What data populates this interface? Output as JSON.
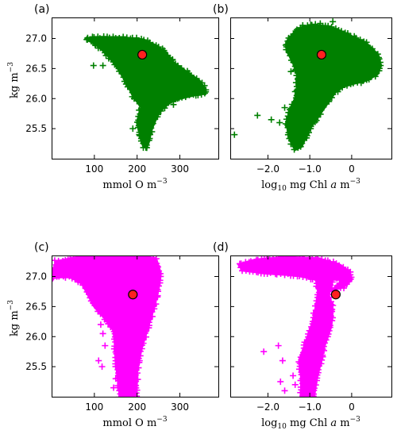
{
  "chart_data": [
    {
      "panel_label": "(a)",
      "type": "scatter",
      "xlabel_main": "mmol O m",
      "xlabel_sup": "−3",
      "ylabel_main": "kg m",
      "ylabel_sup": "−3",
      "xlim": [
        0,
        390
      ],
      "ylim": [
        25.0,
        27.35
      ],
      "xticks": [
        100,
        200,
        300
      ],
      "xtick_labels": [
        "100",
        "200",
        "300"
      ],
      "yticks": [
        25.5,
        26.0,
        26.5,
        27.0
      ],
      "ytick_labels": [
        "25.5",
        "26.0",
        "26.5",
        "27.0"
      ],
      "point_color": "#008000",
      "marker_point": {
        "x": 212,
        "y": 26.73
      },
      "cloud_outline": [
        [
          80,
          27.0
        ],
        [
          100,
          27.02
        ],
        [
          160,
          27.02
        ],
        [
          215,
          26.98
        ],
        [
          245,
          26.88
        ],
        [
          265,
          26.78
        ],
        [
          285,
          26.6
        ],
        [
          315,
          26.45
        ],
        [
          345,
          26.3
        ],
        [
          360,
          26.15
        ],
        [
          360,
          26.1
        ],
        [
          330,
          26.05
        ],
        [
          300,
          26.0
        ],
        [
          280,
          25.95
        ],
        [
          262,
          25.85
        ],
        [
          250,
          25.75
        ],
        [
          240,
          25.6
        ],
        [
          232,
          25.45
        ],
        [
          228,
          25.3
        ],
        [
          222,
          25.18
        ],
        [
          215,
          25.2
        ],
        [
          210,
          25.3
        ],
        [
          205,
          25.45
        ],
        [
          200,
          25.6
        ],
        [
          205,
          25.75
        ],
        [
          210,
          25.85
        ],
        [
          200,
          25.95
        ],
        [
          190,
          26.05
        ],
        [
          180,
          26.2
        ],
        [
          168,
          26.35
        ],
        [
          155,
          26.5
        ],
        [
          140,
          26.65
        ],
        [
          120,
          26.8
        ],
        [
          100,
          26.92
        ],
        [
          85,
          26.97
        ]
      ],
      "outliers": [
        [
          98,
          26.55
        ],
        [
          120,
          26.55
        ],
        [
          283,
          26.65
        ],
        [
          263,
          26.8
        ],
        [
          230,
          25.4
        ],
        [
          205,
          25.4
        ],
        [
          190,
          25.5
        ],
        [
          242,
          25.75
        ],
        [
          285,
          25.9
        ],
        [
          340,
          26.2
        ]
      ]
    },
    {
      "panel_label": "(b)",
      "type": "scatter",
      "xlabel_main": "log",
      "xlabel_sub": "10",
      "xlabel_rest": " mg Chl ",
      "xlabel_italic": "a",
      "xlabel_tail": " m",
      "xlabel_sup": "−3",
      "xlim": [
        -2.9,
        0.95
      ],
      "ylim": [
        25.0,
        27.35
      ],
      "xticks": [
        -2.0,
        -1.0,
        0.0
      ],
      "xtick_labels": [
        "−2.0",
        "−1.0",
        "0"
      ],
      "yticks": [
        25.5,
        26.0,
        26.5,
        27.0
      ],
      "point_color": "#008000",
      "marker_point": {
        "x": -0.72,
        "y": 26.73
      },
      "cloud_outline": [
        [
          -1.55,
          26.95
        ],
        [
          -1.35,
          27.12
        ],
        [
          -1.15,
          27.2
        ],
        [
          -0.85,
          27.22
        ],
        [
          -0.55,
          27.2
        ],
        [
          -0.25,
          27.12
        ],
        [
          0.05,
          27.02
        ],
        [
          0.35,
          26.92
        ],
        [
          0.6,
          26.75
        ],
        [
          0.7,
          26.55
        ],
        [
          0.6,
          26.4
        ],
        [
          0.35,
          26.3
        ],
        [
          0.05,
          26.25
        ],
        [
          -0.2,
          26.2
        ],
        [
          -0.4,
          26.1
        ],
        [
          -0.55,
          25.95
        ],
        [
          -0.7,
          25.8
        ],
        [
          -0.85,
          25.65
        ],
        [
          -1.0,
          25.5
        ],
        [
          -1.1,
          25.35
        ],
        [
          -1.2,
          25.2
        ],
        [
          -1.35,
          25.15
        ],
        [
          -1.5,
          25.35
        ],
        [
          -1.55,
          25.6
        ],
        [
          -1.45,
          25.85
        ],
        [
          -1.35,
          26.0
        ],
        [
          -1.3,
          26.2
        ],
        [
          -1.3,
          26.4
        ],
        [
          -1.4,
          26.6
        ],
        [
          -1.55,
          26.8
        ]
      ],
      "outliers": [
        [
          -2.8,
          25.4
        ],
        [
          -2.25,
          25.72
        ],
        [
          -1.92,
          25.65
        ],
        [
          -1.72,
          25.6
        ],
        [
          -1.6,
          25.85
        ],
        [
          -1.45,
          26.45
        ],
        [
          -1.55,
          26.9
        ],
        [
          -0.75,
          27.25
        ],
        [
          -0.45,
          27.28
        ]
      ]
    },
    {
      "panel_label": "(c)",
      "type": "scatter",
      "xlabel_main": "mmol O m",
      "xlabel_sup": "−3",
      "ylabel_main": "kg m",
      "ylabel_sup": "−3",
      "xlim": [
        0,
        390
      ],
      "ylim": [
        25.0,
        27.35
      ],
      "xticks": [
        100,
        200,
        300
      ],
      "xtick_labels": [
        "100",
        "200",
        "300"
      ],
      "yticks": [
        25.5,
        26.0,
        26.5,
        27.0
      ],
      "ytick_labels": [
        "25.5",
        "26.0",
        "26.5",
        "27.0"
      ],
      "point_color": "#ff00ff",
      "marker_point": {
        "x": 190,
        "y": 26.7
      },
      "cloud_outline": [
        [
          2,
          27.0
        ],
        [
          10,
          27.25
        ],
        [
          60,
          27.32
        ],
        [
          150,
          27.35
        ],
        [
          215,
          27.35
        ],
        [
          245,
          27.28
        ],
        [
          255,
          27.05
        ],
        [
          250,
          26.8
        ],
        [
          240,
          26.5
        ],
        [
          225,
          26.15
        ],
        [
          210,
          25.8
        ],
        [
          200,
          25.45
        ],
        [
          198,
          25.0
        ],
        [
          160,
          25.0
        ],
        [
          155,
          25.3
        ],
        [
          150,
          25.6
        ],
        [
          148,
          25.9
        ],
        [
          145,
          26.1
        ],
        [
          125,
          26.3
        ],
        [
          100,
          26.5
        ],
        [
          85,
          26.7
        ],
        [
          70,
          26.9
        ],
        [
          40,
          27.0
        ],
        [
          5,
          26.98
        ]
      ],
      "outliers": [
        [
          115,
          26.2
        ],
        [
          120,
          26.05
        ],
        [
          125,
          25.85
        ],
        [
          110,
          25.6
        ],
        [
          118,
          25.5
        ],
        [
          150,
          25.3
        ],
        [
          145,
          25.15
        ]
      ]
    },
    {
      "panel_label": "(d)",
      "type": "scatter",
      "xlabel_main": "log",
      "xlabel_sub": "10",
      "xlabel_rest": " mg Chl ",
      "xlabel_italic": "a",
      "xlabel_tail": " m",
      "xlabel_sup": "−3",
      "xlim": [
        -2.9,
        0.95
      ],
      "ylim": [
        25.0,
        27.35
      ],
      "xticks": [
        -2.0,
        -1.0,
        0.0
      ],
      "xtick_labels": [
        "−2.0",
        "−1.0",
        "0"
      ],
      "yticks": [
        25.5,
        26.0,
        26.5,
        27.0
      ],
      "point_color": "#ff00ff",
      "marker_point": {
        "x": -0.38,
        "y": 26.7
      },
      "cloud_outline": [
        [
          -2.7,
          27.2
        ],
        [
          -2.3,
          27.28
        ],
        [
          -1.5,
          27.32
        ],
        [
          -0.8,
          27.3
        ],
        [
          -0.3,
          27.2
        ],
        [
          -0.05,
          27.08
        ],
        [
          0.0,
          26.95
        ],
        [
          -0.2,
          26.82
        ],
        [
          -0.45,
          26.78
        ],
        [
          -0.35,
          26.85
        ],
        [
          -0.2,
          26.95
        ],
        [
          -0.45,
          26.95
        ],
        [
          -0.55,
          26.7
        ],
        [
          -0.45,
          26.45
        ],
        [
          -0.5,
          26.15
        ],
        [
          -0.65,
          25.85
        ],
        [
          -0.75,
          25.55
        ],
        [
          -0.85,
          25.25
        ],
        [
          -0.9,
          25.0
        ],
        [
          -1.2,
          25.0
        ],
        [
          -1.2,
          25.3
        ],
        [
          -1.25,
          25.6
        ],
        [
          -1.1,
          25.9
        ],
        [
          -0.95,
          26.2
        ],
        [
          -0.85,
          26.5
        ],
        [
          -0.8,
          26.75
        ],
        [
          -0.85,
          26.95
        ],
        [
          -1.3,
          27.02
        ],
        [
          -2.0,
          27.05
        ],
        [
          -2.6,
          27.1
        ]
      ],
      "outliers": [
        [
          -2.65,
          27.15
        ],
        [
          -1.65,
          25.6
        ],
        [
          -1.75,
          25.85
        ],
        [
          -2.1,
          25.75
        ],
        [
          -1.7,
          25.25
        ],
        [
          -1.6,
          25.1
        ],
        [
          -1.4,
          25.35
        ],
        [
          -1.35,
          25.2
        ]
      ]
    }
  ]
}
